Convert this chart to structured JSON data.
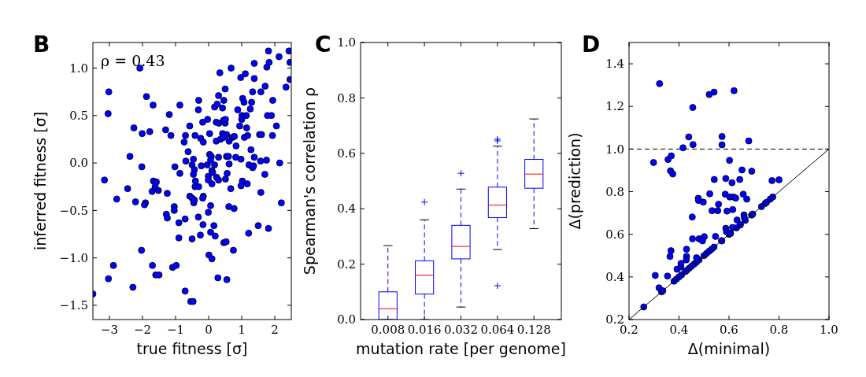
{
  "chart_data": [
    {
      "type": "scatter",
      "title": "B",
      "xlabel": "true fitness [σ]",
      "ylabel": "inferred fitness [σ]",
      "annotations": [
        "ρ = 0.43"
      ],
      "marker": "circle",
      "color": "#0000ff",
      "xlim": [
        -3.5,
        2.5
      ],
      "ylim": [
        -1.65,
        1.27
      ],
      "xticks": [
        {
          "value": -3,
          "label": "−3"
        },
        {
          "value": -2,
          "label": "−2"
        },
        {
          "value": -1,
          "label": "−1"
        },
        0,
        1,
        2
      ],
      "yticks": [
        {
          "value": -1.5,
          "label": "−1.5"
        },
        {
          "value": -1,
          "label": "−1.0"
        },
        {
          "value": -0.5,
          "label": "−0.5"
        },
        {
          "value": 0,
          "label": "0.0"
        },
        0.5,
        {
          "value": 1,
          "label": "1.0"
        }
      ],
      "x": [
        -3.02,
        -3.04,
        -3.15,
        -2.78,
        -2.88,
        -3.03,
        -2.29,
        -3.5,
        -2.08,
        -1.88,
        -1.68,
        -2.26,
        -2.01,
        -1.78,
        -2.38,
        -2.02,
        -2.45,
        -2.21,
        -1.91,
        -1.94,
        -2.03,
        -1.7,
        -1.6,
        -1.5,
        -1.67,
        -1.58,
        -1.62,
        -1.52,
        -1.71,
        -1.25,
        -1.19,
        -1.3,
        -1.14,
        -1.02,
        -0.87,
        -1.28,
        -1.25,
        -1.04,
        -1.04,
        -0.87,
        -0.9,
        -0.71,
        -0.9,
        -1.09,
        -0.98,
        -0.71,
        -0.54,
        -0.47,
        -0.57,
        -0.7,
        -0.74,
        -0.62,
        -0.69,
        -0.46,
        -0.5,
        -0.41,
        -0.3,
        -0.31,
        -0.18,
        -0.03,
        -0.24,
        -0.16,
        0.03,
        -0.43,
        -0.46,
        -0.4,
        -0.41,
        -0.3,
        -0.22,
        -0.04,
        0.03,
        0.08,
        0.06,
        -0.01,
        -0.01,
        0.1,
        0.12,
        0.18,
        0.1,
        -0.57,
        -0.5,
        -0.45,
        -0.43,
        -0.16,
        -0.18,
        0.06,
        -0.01,
        -0.31,
        -0.17,
        -0.25,
        -0.5,
        0.06,
        0.16,
        0.2,
        0.01,
        0.1,
        0.28,
        0.55,
        0.46,
        0.53,
        0.75,
        0.61,
        0.77,
        0.67,
        0.18,
        0.26,
        0.3,
        0.34,
        0.42,
        0.46,
        0.5,
        0.23,
        0.31,
        0.45,
        0.5,
        0.51,
        0.23,
        0.36,
        0.42,
        0.46,
        0.54,
        0.62,
        0.72,
        0.78,
        0.83,
        0.68,
        0.3,
        0.54,
        0.6,
        0.62,
        0.82,
        0.98,
        0.24,
        0.3,
        0.51,
        0.56,
        0.88,
        0.97,
        1.11,
        1.03,
        1.07,
        1.01,
        1.14,
        1.0,
        0.94,
        1.15,
        1.08,
        1.18,
        1.28,
        1.22,
        1.33,
        1.36,
        1.38,
        1.02,
        0.98,
        1.17,
        1.21,
        1.26,
        1.3,
        1.33,
        1.38,
        1.38,
        1.58,
        1.71,
        1.76,
        1.81,
        1.83,
        1.54,
        1.6,
        1.57,
        1.75,
        1.7,
        1.58,
        1.5,
        1.81,
        1.78,
        1.9,
        1.94,
        1.93,
        2.05,
        2.15,
        2.2,
        2.13,
        2.34,
        2.43,
        2.46,
        2.46
      ],
      "values": [
        0.75,
        0.52,
        -0.18,
        -0.38,
        -1.08,
        -1.22,
        -1.31,
        -1.38,
        1.0,
        0.7,
        0.61,
        0.37,
        0.31,
        0.33,
        0.07,
        -0.04,
        -0.27,
        -0.41,
        -0.42,
        -0.44,
        -0.92,
        -1.08,
        -1.18,
        -1.18,
        -0.19,
        -0.2,
        -0.25,
        -0.29,
        -0.3,
        -0.32,
        0.51,
        0.35,
        0.29,
        -0.04,
        -0.11,
        -0.54,
        -0.58,
        -0.46,
        -0.5,
        0.61,
        -0.63,
        -0.59,
        -0.79,
        -1.1,
        -1.08,
        -1.35,
        -1.46,
        -1.46,
        0.39,
        0.29,
        0.22,
        0.12,
        0.02,
        0.04,
        -0.02,
        0.29,
        0.66,
        0.56,
        0.43,
        0.46,
        0.26,
        0.22,
        0.31,
        -0.07,
        -0.12,
        -0.19,
        -0.25,
        -0.25,
        -0.03,
        -0.02,
        0.09,
        0.07,
        0.03,
        -0.14,
        -0.18,
        -0.08,
        -0.1,
        -0.02,
        -0.22,
        -0.35,
        -0.37,
        -0.42,
        -0.39,
        -0.35,
        -0.37,
        -0.45,
        -0.52,
        -0.57,
        -0.65,
        -0.76,
        -0.8,
        -0.73,
        -0.66,
        -0.77,
        -0.97,
        -1.01,
        -1.21,
        -1.23,
        -0.84,
        -0.83,
        -0.92,
        -0.46,
        -0.48,
        -0.27,
        0.59,
        0.62,
        0.71,
        0.95,
        0.58,
        0.66,
        0.78,
        0.43,
        0.42,
        0.45,
        0.42,
        0.46,
        0.23,
        0.25,
        0.31,
        0.27,
        0.3,
        0.23,
        0.27,
        0.28,
        0.18,
        1.0,
        0.06,
        0.07,
        0.07,
        -0.01,
        0.06,
        0.04,
        -0.15,
        -0.18,
        -0.17,
        -0.11,
        0.56,
        0.9,
        0.94,
        0.68,
        0.64,
        0.5,
        0.5,
        0.46,
        0.39,
        0.37,
        0.27,
        0.29,
        0.14,
        -0.02,
        -0.05,
        -0.03,
        0.06,
        -0.19,
        -0.24,
        -0.22,
        -0.74,
        0.57,
        0.64,
        0.75,
        0.89,
        1.05,
        0.75,
        0.81,
        1.01,
        1.18,
        1.06,
        0.3,
        0.3,
        0.02,
        0.03,
        -0.12,
        -0.31,
        -0.66,
        -0.69,
        0.5,
        0.5,
        0.66,
        0.29,
        0.39,
        0.0,
        -0.42,
        1.12,
        0.8,
        1.18,
        1.06,
        0.88
      ]
    },
    {
      "type": "box",
      "title": "C",
      "xlabel": "mutation rate [per genome]",
      "ylabel": "Spearman's correlation ρ",
      "color": "#0000ff",
      "categories": [
        "0.008",
        "0.016",
        "0.032",
        "0.064",
        "0.128"
      ],
      "ylim": [
        0,
        1
      ],
      "yticks": [
        {
          "value": 0,
          "label": "0.0"
        },
        0.2,
        0.4,
        0.6,
        0.8,
        {
          "value": 1,
          "label": "1.0"
        }
      ],
      "boxes": [
        {
          "low": 0,
          "q1": 0,
          "median": 0.039,
          "q3": 0.1,
          "high": 0.267
        },
        {
          "low": 0,
          "q1": 0.092,
          "median": 0.16,
          "q3": 0.212,
          "high": 0.36,
          "outliers": [
            0.424
          ]
        },
        {
          "low": 0.045,
          "q1": 0.219,
          "median": 0.264,
          "q3": 0.34,
          "high": 0.471,
          "outliers": [
            0.528
          ]
        },
        {
          "low": 0.253,
          "q1": 0.368,
          "median": 0.413,
          "q3": 0.478,
          "high": 0.626,
          "outliers": [
            0.651,
            0.645,
            0.122
          ]
        },
        {
          "low": 0.328,
          "q1": 0.474,
          "median": 0.525,
          "q3": 0.578,
          "high": 0.724
        }
      ]
    },
    {
      "type": "scatter",
      "title": "D",
      "xlabel": "Δ(minimal)",
      "ylabel": "Δ(prediction)",
      "xlim": [
        0.2,
        1.0
      ],
      "ylim": [
        0.2,
        1.5
      ],
      "xticks": [
        0.2,
        0.4,
        0.6,
        0.8,
        {
          "value": 1,
          "label": "1.0"
        }
      ],
      "yticks": [
        0.2,
        0.4,
        0.6,
        0.8,
        {
          "value": 1,
          "label": "1.0"
        },
        1.2,
        1.4
      ],
      "ref_lines": [
        {
          "axis": "y",
          "value": 1.0,
          "color": "#000000",
          "line_style": "dashed"
        }
      ],
      "series": [
        {
          "marker": "circle",
          "color": "#0000ff",
          "x": [
            0.322,
            0.521,
            0.54,
            0.62,
            0.455,
            0.439,
            0.416,
            0.456,
            0.572,
            0.572,
            0.679,
            0.298,
            0.356,
            0.369,
            0.366,
            0.375,
            0.602,
            0.652,
            0.691,
            0.541,
            0.587,
            0.612,
            0.643,
            0.772,
            0.8,
            0.523,
            0.585,
            0.603,
            0.618,
            0.627,
            0.657,
            0.671,
            0.477,
            0.478,
            0.497,
            0.558,
            0.532,
            0.555,
            0.592,
            0.615,
            0.66,
            0.661,
            0.453,
            0.632,
            0.587,
            0.614,
            0.59,
            0.606,
            0.645,
            0.454,
            0.48,
            0.501,
            0.494,
            0.546,
            0.571,
            0.368,
            0.364,
            0.43,
            0.43,
            0.429,
            0.305,
            0.354,
            0.392,
            0.407,
            0.408,
            0.32,
            0.259,
            0.33,
            0.335,
            0.38,
            0.39,
            0.4,
            0.41,
            0.425,
            0.43,
            0.44,
            0.45,
            0.46,
            0.47,
            0.48,
            0.5,
            0.51,
            0.52,
            0.53,
            0.54,
            0.57,
            0.6,
            0.605,
            0.63,
            0.645,
            0.665,
            0.69,
            0.695,
            0.73,
            0.745,
            0.75,
            0.765,
            0.775,
            0.47
          ],
          "values": [
            1.307,
            1.256,
            1.267,
            1.274,
            1.195,
            1.057,
            1.006,
            1.021,
            1.059,
            1.02,
            1.038,
            0.937,
            0.951,
            0.968,
            0.898,
            0.883,
            0.947,
            0.902,
            0.896,
            0.857,
            0.862,
            0.842,
            0.857,
            0.852,
            0.856,
            0.79,
            0.788,
            0.775,
            0.775,
            0.77,
            0.788,
            0.765,
            0.769,
            0.759,
            0.751,
            0.741,
            0.711,
            0.711,
            0.709,
            0.716,
            0.691,
            0.679,
            0.681,
            0.667,
            0.628,
            0.632,
            0.611,
            0.604,
            0.644,
            0.579,
            0.579,
            0.589,
            0.569,
            0.59,
            0.569,
            0.523,
            0.496,
            0.53,
            0.496,
            0.48,
            0.407,
            0.404,
            0.436,
            0.447,
            0.463,
            0.349,
            0.259,
            0.33,
            0.335,
            0.38,
            0.39,
            0.4,
            0.41,
            0.425,
            0.43,
            0.44,
            0.45,
            0.46,
            0.47,
            0.48,
            0.5,
            0.51,
            0.52,
            0.53,
            0.54,
            0.57,
            0.6,
            0.605,
            0.63,
            0.645,
            0.665,
            0.69,
            0.695,
            0.73,
            0.745,
            0.75,
            0.765,
            0.775,
            0.49
          ]
        },
        {
          "type": "line",
          "color": "#000000",
          "line_style": "solid",
          "x": [
            0.2,
            1.0
          ],
          "values": [
            0.2,
            1.0
          ]
        }
      ]
    }
  ]
}
